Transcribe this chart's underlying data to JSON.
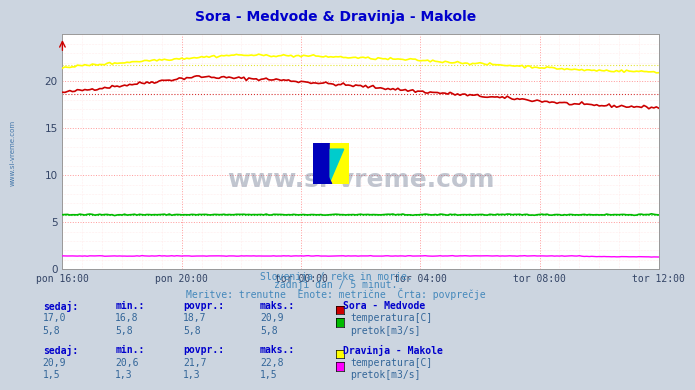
{
  "title": "Sora - Medvode & Dravinja - Makole",
  "title_color": "#0000cc",
  "bg_color": "#ccd5e0",
  "plot_bg_color": "#ffffff",
  "grid_color_major": "#ff9999",
  "grid_color_minor": "#ffdddd",
  "x_tick_labels": [
    "pon 16:00",
    "pon 20:00",
    "tor 00:00",
    "tor 04:00",
    "tor 08:00",
    "tor 12:00"
  ],
  "x_ticks": [
    0,
    48,
    96,
    144,
    192,
    240
  ],
  "x_total_points": 241,
  "subtitle_lines": [
    "Slovenija / reke in morje.",
    "zadnji dan / 5 minut.",
    "Meritve: trenutne  Enote: metrične  Črta: povprečje"
  ],
  "subtitle_color": "#4488bb",
  "table_label_color": "#0000cc",
  "table_value_color": "#336699",
  "sora_temp_color": "#cc0000",
  "sora_pretok_color": "#00bb00",
  "dravinja_temp_color": "#ffff00",
  "dravinja_pretok_color": "#ff00ff",
  "avg_sora_temp": 18.7,
  "avg_sora_pretok": 5.8,
  "avg_dravinja_temp": 21.7,
  "avg_dravinja_pretok": 1.3,
  "ymin": 0,
  "ymax": 25,
  "yticks": [
    0,
    5,
    10,
    15,
    20
  ],
  "watermark": "www.si-vreme.com",
  "watermark_color": "#334466",
  "left_label": "www.si-vreme.com",
  "sora_sedaj": "17,0",
  "sora_min": "16,8",
  "sora_povpr": "18,7",
  "sora_maks": "20,9",
  "sora_pretok_sedaj": "5,8",
  "sora_pretok_min": "5,8",
  "sora_pretok_povpr": "5,8",
  "sora_pretok_maks": "5,8",
  "drav_sedaj": "20,9",
  "drav_min": "20,6",
  "drav_povpr": "21,7",
  "drav_maks": "22,8",
  "drav_pretok_sedaj": "1,5",
  "drav_pretok_min": "1,3",
  "drav_pretok_povpr": "1,3",
  "drav_pretok_maks": "1,5"
}
